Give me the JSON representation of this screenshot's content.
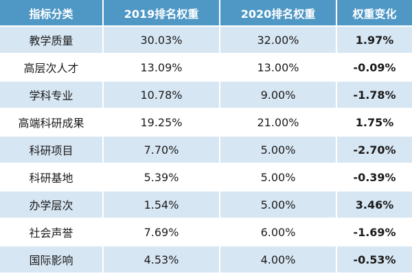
{
  "table": {
    "headers": [
      "指标分类",
      "2019排名权重",
      "2020排名权重",
      "权重变化"
    ],
    "rows": [
      [
        "教学质量",
        "30.03%",
        "32.00%",
        "1.97%"
      ],
      [
        "高层次人才",
        "13.09%",
        "13.00%",
        "-0.09%"
      ],
      [
        "学科专业",
        "10.78%",
        "9.00%",
        "-1.78%"
      ],
      [
        "高端科研成果",
        "19.25%",
        "21.00%",
        "1.75%"
      ],
      [
        "科研项目",
        "7.70%",
        "5.00%",
        "-2.70%"
      ],
      [
        "科研基地",
        "5.39%",
        "5.00%",
        "-0.39%"
      ],
      [
        "办学层次",
        "1.54%",
        "5.00%",
        "3.46%"
      ],
      [
        "社会声誉",
        "7.69%",
        "6.00%",
        "-1.69%"
      ],
      [
        "国际影响",
        "4.53%",
        "4.00%",
        "-0.53%"
      ]
    ]
  },
  "colors": {
    "header_bg": "#4f98c6",
    "stripe_bg": "#d7e6f3",
    "text": "#1a1a1a"
  }
}
